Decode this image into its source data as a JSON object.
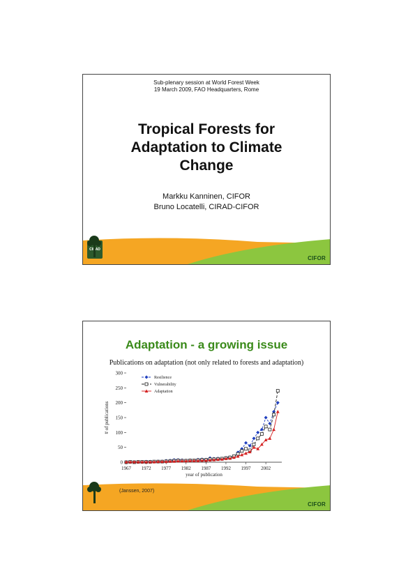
{
  "slide1": {
    "header_line1": "Sub-plenary session at World Forest Week",
    "header_line2": "19 March 2009, FAO Headquarters, Rome",
    "title_line1": "Tropical Forests for",
    "title_line2": "Adaptation to Climate",
    "title_line3": "Change",
    "author1": "Markku Kanninen, CIFOR",
    "author2": "Bruno Locatelli, CIRAD-CIFOR",
    "left_logo": "CIRAD",
    "right_logo": "CIFOR"
  },
  "slide2": {
    "title": "Adaptation - a growing issue",
    "subtitle": "Publications on adaptation (not only related to forests and adaptation)",
    "source": "(Janssen, 2007)",
    "right_logo": "CIFOR"
  },
  "colors": {
    "orange": "#f5a623",
    "green": "#8cc63f",
    "title_green": "#3a8a1a",
    "series_resilience": "#1f3fbf",
    "series_vulnerability": "#222222",
    "series_adaptation": "#d42020"
  },
  "chart_data": {
    "type": "line",
    "xlabel": "year of publication",
    "ylabel": "# of publications",
    "xlim": [
      1967,
      2006
    ],
    "ylim": [
      0,
      300
    ],
    "xticks": [
      "1967",
      "1972",
      "1977",
      "1982",
      "1987",
      "1992",
      "1997",
      "2002"
    ],
    "yticks": [
      "0",
      "50",
      "100",
      "150",
      "200",
      "250",
      "300"
    ],
    "legend_position": "top-left",
    "series": [
      {
        "name": "Resilience",
        "x": [
          1967,
          1968,
          1969,
          1970,
          1971,
          1972,
          1973,
          1974,
          1975,
          1976,
          1977,
          1978,
          1979,
          1980,
          1981,
          1982,
          1983,
          1984,
          1985,
          1986,
          1987,
          1988,
          1989,
          1990,
          1991,
          1992,
          1993,
          1994,
          1995,
          1996,
          1997,
          1998,
          1999,
          2000,
          2001,
          2002,
          2003,
          2004,
          2005
        ],
        "values": [
          1,
          1,
          1,
          1,
          1,
          2,
          2,
          2,
          3,
          3,
          5,
          6,
          8,
          8,
          7,
          6,
          7,
          6,
          9,
          10,
          9,
          14,
          12,
          13,
          11,
          15,
          17,
          20,
          33,
          45,
          65,
          55,
          80,
          100,
          110,
          150,
          130,
          170,
          200
        ]
      },
      {
        "name": "Vulnerability",
        "x": [
          1967,
          1968,
          1969,
          1970,
          1971,
          1972,
          1973,
          1974,
          1975,
          1976,
          1977,
          1978,
          1979,
          1980,
          1981,
          1982,
          1983,
          1984,
          1985,
          1986,
          1987,
          1988,
          1989,
          1990,
          1991,
          1992,
          1993,
          1994,
          1995,
          1996,
          1997,
          1998,
          1999,
          2000,
          2001,
          2002,
          2003,
          2004,
          2005
        ],
        "values": [
          0,
          1,
          0,
          1,
          1,
          1,
          1,
          2,
          2,
          2,
          3,
          4,
          5,
          6,
          5,
          5,
          6,
          6,
          7,
          8,
          8,
          10,
          10,
          11,
          12,
          14,
          16,
          20,
          28,
          38,
          45,
          40,
          60,
          80,
          95,
          120,
          110,
          160,
          240
        ]
      },
      {
        "name": "Adaptation",
        "x": [
          1967,
          1968,
          1969,
          1970,
          1971,
          1972,
          1973,
          1974,
          1975,
          1976,
          1977,
          1978,
          1979,
          1980,
          1981,
          1982,
          1983,
          1984,
          1985,
          1986,
          1987,
          1988,
          1989,
          1990,
          1991,
          1992,
          1993,
          1994,
          1995,
          1996,
          1997,
          1998,
          1999,
          2000,
          2001,
          2002,
          2003,
          2004,
          2005
        ],
        "values": [
          1,
          1,
          1,
          1,
          1,
          1,
          1,
          1,
          2,
          2,
          2,
          3,
          3,
          4,
          4,
          4,
          5,
          5,
          5,
          6,
          6,
          7,
          8,
          9,
          10,
          12,
          13,
          16,
          20,
          25,
          30,
          35,
          50,
          45,
          60,
          75,
          80,
          110,
          170
        ]
      }
    ]
  }
}
